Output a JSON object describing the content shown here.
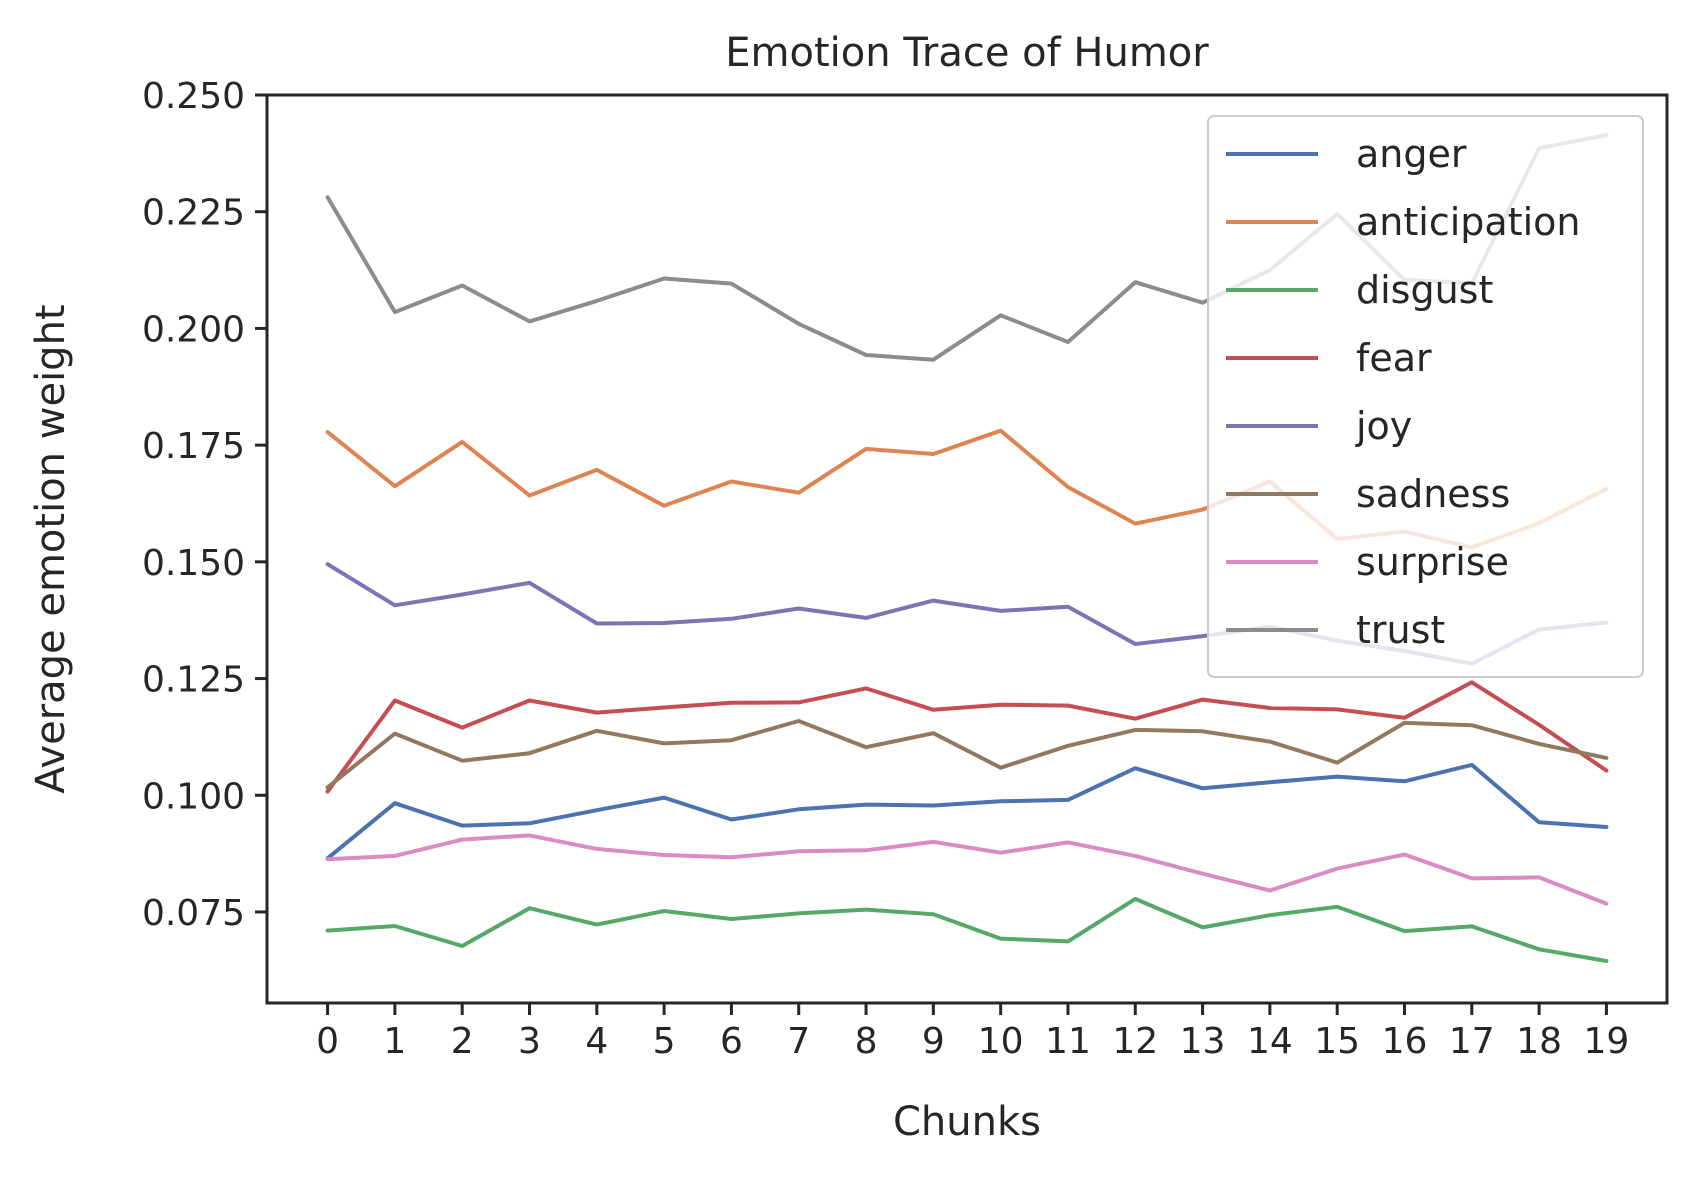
{
  "chart_data": {
    "type": "line",
    "title": "Emotion Trace of Humor",
    "xlabel": "Chunks",
    "ylabel": "Average emotion weight",
    "x": [
      0,
      1,
      2,
      3,
      4,
      5,
      6,
      7,
      8,
      9,
      10,
      11,
      12,
      13,
      14,
      15,
      16,
      17,
      18,
      19
    ],
    "x_ticks": [
      "0",
      "1",
      "2",
      "3",
      "4",
      "5",
      "6",
      "7",
      "8",
      "9",
      "10",
      "11",
      "12",
      "13",
      "14",
      "15",
      "16",
      "17",
      "18",
      "19"
    ],
    "ylim": [
      0.0555,
      0.25
    ],
    "y_ticks": [
      "0.075",
      "0.100",
      "0.125",
      "0.150",
      "0.175",
      "0.200",
      "0.225",
      "0.250"
    ],
    "grid": false,
    "legend_position": "top-right",
    "series": [
      {
        "name": "anger",
        "color": "#4c72b0",
        "values": [
          0.0865,
          0.0983,
          0.0935,
          0.094,
          0.0968,
          0.0995,
          0.0948,
          0.097,
          0.098,
          0.0978,
          0.0987,
          0.099,
          0.1058,
          0.1015,
          0.1028,
          0.104,
          0.103,
          0.1065,
          0.0942,
          0.0932
        ]
      },
      {
        "name": "anticipation",
        "color": "#dd8452",
        "values": [
          0.1778,
          0.1662,
          0.1757,
          0.1642,
          0.1697,
          0.162,
          0.1672,
          0.1648,
          0.1742,
          0.1731,
          0.1781,
          0.166,
          0.1582,
          0.1612,
          0.1672,
          0.1549,
          0.1565,
          0.1531,
          0.1583,
          0.1656
        ]
      },
      {
        "name": "disgust",
        "color": "#55a868",
        "values": [
          0.071,
          0.072,
          0.0677,
          0.0758,
          0.0723,
          0.0752,
          0.0735,
          0.0747,
          0.0755,
          0.0745,
          0.0693,
          0.0687,
          0.0778,
          0.0717,
          0.0743,
          0.0761,
          0.0709,
          0.0719,
          0.067,
          0.0645
        ]
      },
      {
        "name": "fear",
        "color": "#c44e52",
        "values": [
          0.1008,
          0.1203,
          0.1145,
          0.1203,
          0.1177,
          0.1188,
          0.1198,
          0.1199,
          0.1229,
          0.1183,
          0.1194,
          0.1192,
          0.1164,
          0.1205,
          0.1187,
          0.1184,
          0.1166,
          0.1242,
          0.1151,
          0.1053
        ]
      },
      {
        "name": "joy",
        "color": "#8172b3",
        "values": [
          0.1495,
          0.1407,
          0.143,
          0.1455,
          0.1368,
          0.1369,
          0.1378,
          0.14,
          0.138,
          0.1417,
          0.1395,
          0.1404,
          0.1324,
          0.1341,
          0.1361,
          0.1331,
          0.1309,
          0.1282,
          0.1355,
          0.137
        ]
      },
      {
        "name": "sadness",
        "color": "#937860",
        "values": [
          0.1017,
          0.1132,
          0.1074,
          0.109,
          0.1138,
          0.1111,
          0.1118,
          0.1159,
          0.1103,
          0.1133,
          0.1059,
          0.1106,
          0.114,
          0.1137,
          0.1115,
          0.107,
          0.1155,
          0.115,
          0.111,
          0.108
        ]
      },
      {
        "name": "surprise",
        "color": "#da8bc3",
        "values": [
          0.0863,
          0.087,
          0.0905,
          0.0914,
          0.0885,
          0.0872,
          0.0867,
          0.088,
          0.0882,
          0.09,
          0.0877,
          0.0899,
          0.087,
          0.0832,
          0.0796,
          0.0843,
          0.0873,
          0.0822,
          0.0824,
          0.0768
        ]
      },
      {
        "name": "trust",
        "color": "#8c8c8c",
        "values": [
          0.2281,
          0.2035,
          0.2092,
          0.2015,
          0.2059,
          0.2107,
          0.2096,
          0.201,
          0.1943,
          0.1933,
          0.2028,
          0.1971,
          0.2099,
          0.2055,
          0.2125,
          0.2245,
          0.2104,
          0.2097,
          0.2386,
          0.2414
        ]
      }
    ]
  }
}
